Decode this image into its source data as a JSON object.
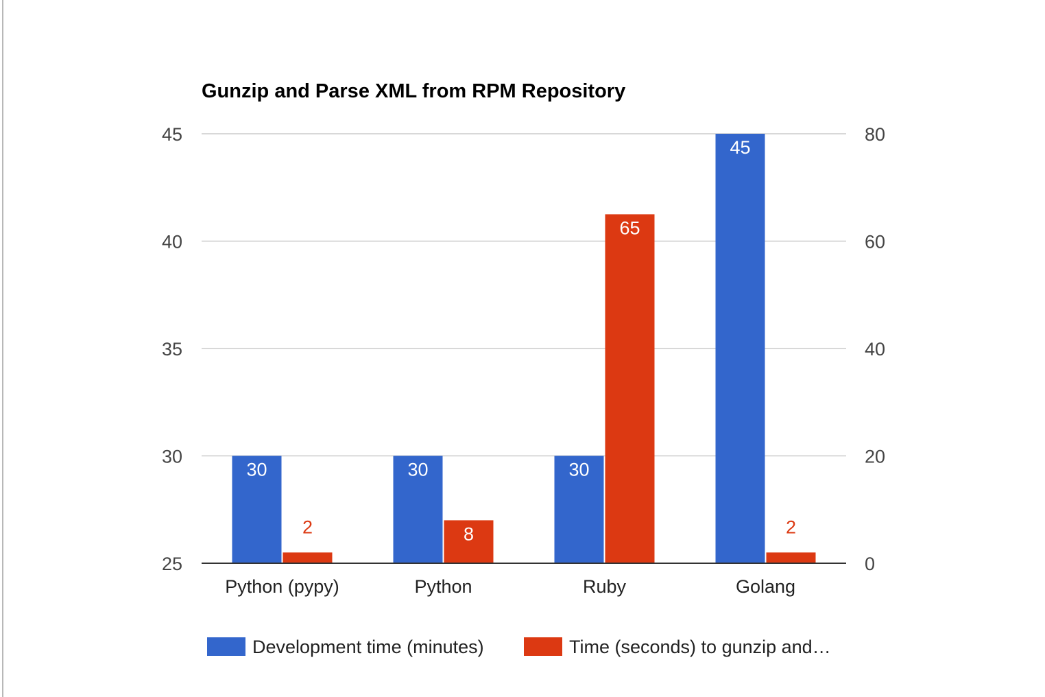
{
  "chart_data": {
    "type": "bar",
    "title": "Gunzip and Parse XML from RPM Repository",
    "categories": [
      "Python (pypy)",
      "Python",
      "Ruby",
      "Golang"
    ],
    "series": [
      {
        "name": "Development time (minutes)",
        "axis": "left",
        "color": "#3366cc",
        "values": [
          30,
          30,
          30,
          45
        ]
      },
      {
        "name": "Time (seconds) to gunzip and…",
        "axis": "right",
        "color": "#dc3912",
        "values": [
          2,
          8,
          65,
          2
        ]
      }
    ],
    "y_left": {
      "range": [
        25,
        45
      ],
      "ticks": [
        "25",
        "30",
        "35",
        "40",
        "45"
      ]
    },
    "y_right": {
      "range": [
        0,
        80
      ],
      "ticks": [
        "0",
        "20",
        "40",
        "60",
        "80"
      ]
    },
    "grid": true,
    "legend": "bottom",
    "xlabel": "",
    "ylabel": ""
  }
}
